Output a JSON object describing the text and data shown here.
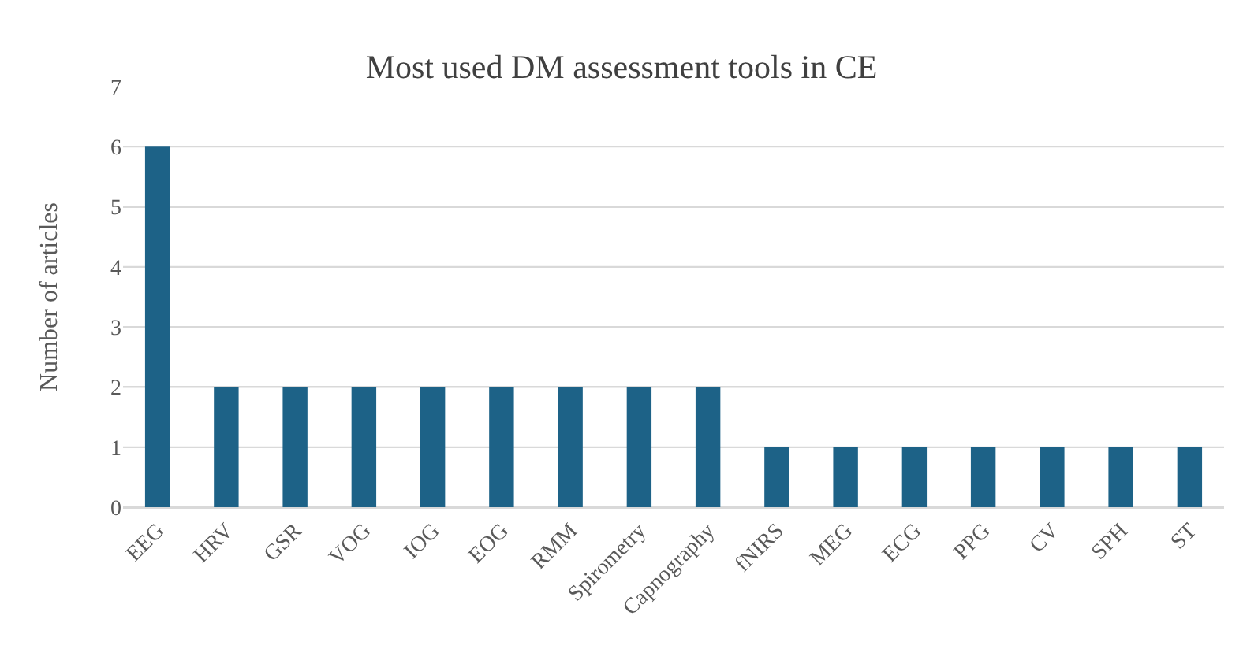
{
  "chart_data": {
    "type": "bar",
    "title": "Most used DM assessment tools in CE",
    "ylabel": "Number of articles",
    "categories": [
      "EEG",
      "HRV",
      "GSR",
      "VOG",
      "IOG",
      "EOG",
      "RMM",
      "Spirometry",
      "Capnography",
      "fNIRS",
      "MEG",
      "ECG",
      "PPG",
      "CV",
      "SPH",
      "ST"
    ],
    "values": [
      6,
      2,
      2,
      2,
      2,
      2,
      2,
      2,
      2,
      1,
      1,
      1,
      1,
      1,
      1,
      1
    ],
    "color": "#1d6287",
    "ylim": [
      0,
      7
    ],
    "yticks": [
      0,
      1,
      2,
      3,
      4,
      5,
      6,
      7
    ],
    "grid": "y"
  }
}
